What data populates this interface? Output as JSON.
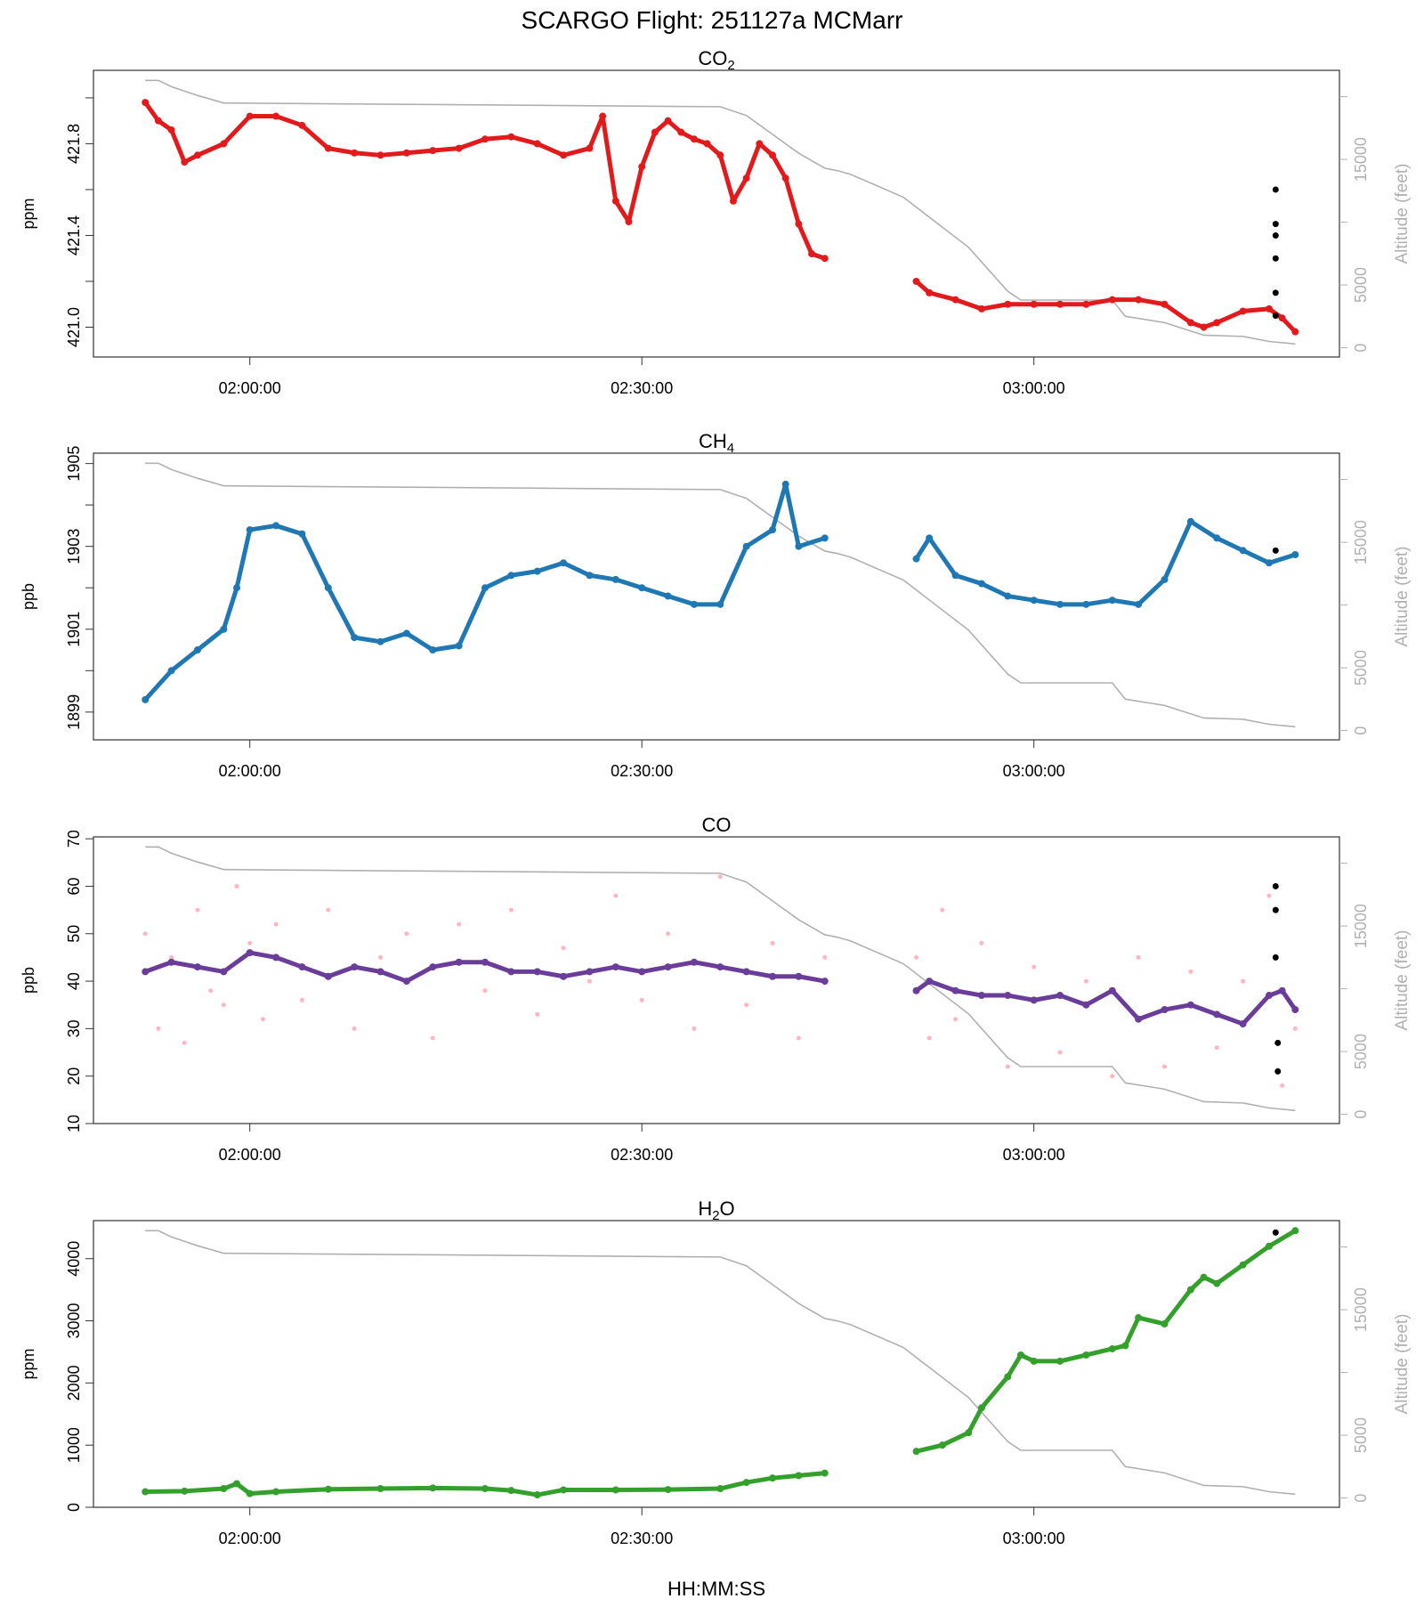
{
  "title": "SCARGO Flight: 251127a  MCMarr",
  "xlabel": "HH:MM:SS",
  "chart_data": [
    {
      "type": "scatter",
      "title": "CO",
      "title_sub": "2",
      "ylabel": "ppm",
      "y2label": "Altitude (feet)",
      "xlim": [
        "01:48:02",
        "03:23:23"
      ],
      "xticks": [
        "02:00:00",
        "02:30:00",
        "03:00:00"
      ],
      "ylim": [
        420.87,
        422.12
      ],
      "yticks": [
        421.0,
        421.2,
        421.4,
        421.6,
        421.8,
        422.0
      ],
      "ytick_labels": [
        "421.0",
        "421.4",
        "421.8"
      ],
      "color": "#e31a1c",
      "grid": false,
      "series": [
        {
          "t": [
            "01:52",
            "01:53",
            "01:54",
            "01:55",
            "01:56",
            "01:58",
            "02:00",
            "02:02",
            "02:04",
            "02:06",
            "02:08",
            "02:10",
            "02:12",
            "02:14",
            "02:16",
            "02:18",
            "02:20",
            "02:22",
            "02:24",
            "02:26",
            "02:27",
            "02:28",
            "02:29",
            "02:30",
            "02:31",
            "02:32",
            "02:33",
            "02:34",
            "02:35",
            "02:36",
            "02:37",
            "02:38",
            "02:39",
            "02:40",
            "02:41",
            "02:42",
            "02:43",
            "02:44"
          ],
          "y": [
            421.98,
            421.9,
            421.86,
            421.72,
            421.75,
            421.8,
            421.92,
            421.92,
            421.88,
            421.78,
            421.76,
            421.75,
            421.76,
            421.77,
            421.78,
            421.82,
            421.83,
            421.8,
            421.75,
            421.78,
            421.92,
            421.55,
            421.46,
            421.7,
            421.85,
            421.9,
            421.85,
            421.82,
            421.8,
            421.75,
            421.55,
            421.65,
            421.8,
            421.75,
            421.65,
            421.45,
            421.32,
            421.3
          ]
        },
        {
          "t": [
            "02:51",
            "02:52",
            "02:54",
            "02:56",
            "02:58",
            "03:00",
            "03:02",
            "03:04",
            "03:06",
            "03:08",
            "03:10",
            "03:12",
            "03:13",
            "03:14",
            "03:16",
            "03:18",
            "03:19",
            "03:20"
          ],
          "y": [
            421.2,
            421.15,
            421.12,
            421.08,
            421.1,
            421.1,
            421.1,
            421.1,
            421.12,
            421.12,
            421.1,
            421.02,
            421.0,
            421.02,
            421.07,
            421.08,
            421.04,
            420.98
          ]
        }
      ],
      "flagged": {
        "t": [
          "03:18:30",
          "03:18:30",
          "03:18:30",
          "03:18:30",
          "03:18:30",
          "03:18:30"
        ],
        "y": [
          421.05,
          421.15,
          421.3,
          421.4,
          421.45,
          421.6
        ]
      }
    },
    {
      "type": "scatter",
      "title": "CH",
      "title_sub": "4",
      "ylabel": "ppb",
      "y2label": "Altitude (feet)",
      "xlim": [
        "01:48:02",
        "03:23:23"
      ],
      "xticks": [
        "02:00:00",
        "02:30:00",
        "03:00:00"
      ],
      "ylim": [
        1898.33,
        1905.25
      ],
      "yticks": [
        1899,
        1900,
        1901,
        1902,
        1903,
        1904,
        1905
      ],
      "ytick_labels": [
        "1899",
        "1901",
        "1903",
        "1905"
      ],
      "color": "#1f78b4",
      "grid": false,
      "series": [
        {
          "t": [
            "01:52",
            "01:54",
            "01:56",
            "01:58",
            "01:59",
            "02:00",
            "02:02",
            "02:04",
            "02:06",
            "02:08",
            "02:10",
            "02:12",
            "02:14",
            "02:16",
            "02:18",
            "02:20",
            "02:22",
            "02:24",
            "02:26",
            "02:28",
            "02:30",
            "02:32",
            "02:34",
            "02:36",
            "02:38",
            "02:40",
            "02:41",
            "02:42",
            "02:44"
          ],
          "y": [
            1899.3,
            1900.0,
            1900.5,
            1901.0,
            1902.0,
            1903.4,
            1903.5,
            1903.3,
            1902.0,
            1900.8,
            1900.7,
            1900.9,
            1900.5,
            1900.6,
            1902.0,
            1902.3,
            1902.4,
            1902.6,
            1902.3,
            1902.2,
            1902.0,
            1901.8,
            1901.6,
            1901.6,
            1903.0,
            1903.4,
            1904.5,
            1903.0,
            1903.2
          ]
        },
        {
          "t": [
            "02:51",
            "02:52",
            "02:54",
            "02:56",
            "02:58",
            "03:00",
            "03:02",
            "03:04",
            "03:06",
            "03:08",
            "03:10",
            "03:12",
            "03:14",
            "03:16",
            "03:18",
            "03:20"
          ],
          "y": [
            1902.7,
            1903.2,
            1902.3,
            1902.1,
            1901.8,
            1901.7,
            1901.6,
            1901.6,
            1901.7,
            1901.6,
            1902.2,
            1903.6,
            1903.2,
            1902.9,
            1902.6,
            1902.8
          ]
        }
      ],
      "flagged": {
        "t": [
          "03:18:30"
        ],
        "y": [
          1902.9
        ]
      }
    },
    {
      "type": "scatter",
      "title": "CO",
      "title_sub": "",
      "ylabel": "ppb",
      "y2label": "Altitude (feet)",
      "xlim": [
        "01:48:02",
        "03:23:23"
      ],
      "xticks": [
        "02:00:00",
        "02:30:00",
        "03:00:00"
      ],
      "ylim": [
        10,
        70.4
      ],
      "yticks": [
        10,
        20,
        30,
        40,
        50,
        60,
        70
      ],
      "ytick_labels": [
        "10",
        "20",
        "30",
        "40",
        "50",
        "60",
        "70"
      ],
      "color": "#6a3d9a",
      "raw_color": "#ffb6c1",
      "grid": false,
      "raw": [
        {
          "t": [
            "01:52",
            "01:53",
            "01:54",
            "01:55",
            "01:56",
            "01:57",
            "01:58",
            "01:59",
            "02:00",
            "02:01",
            "02:02",
            "02:04",
            "02:06",
            "02:08",
            "02:10",
            "02:12",
            "02:14",
            "02:16",
            "02:18",
            "02:20",
            "02:22",
            "02:24",
            "02:26",
            "02:28",
            "02:30",
            "02:32",
            "02:34",
            "02:36",
            "02:38",
            "02:40",
            "02:42",
            "02:44"
          ],
          "y": [
            50,
            30,
            45,
            27,
            55,
            38,
            35,
            60,
            48,
            32,
            52,
            36,
            55,
            30,
            45,
            50,
            28,
            52,
            38,
            55,
            33,
            47,
            40,
            58,
            36,
            50,
            30,
            62,
            35,
            48,
            28,
            45
          ]
        },
        {
          "t": [
            "02:51",
            "02:52",
            "02:53",
            "02:54",
            "02:56",
            "02:58",
            "03:00",
            "03:02",
            "03:04",
            "03:06",
            "03:08",
            "03:10",
            "03:12",
            "03:14",
            "03:16",
            "03:18",
            "03:19",
            "03:20"
          ],
          "y": [
            45,
            28,
            55,
            32,
            48,
            22,
            43,
            25,
            40,
            20,
            45,
            22,
            42,
            26,
            40,
            58,
            18,
            30
          ]
        }
      ],
      "series": [
        {
          "t": [
            "01:52",
            "01:54",
            "01:56",
            "01:58",
            "02:00",
            "02:02",
            "02:04",
            "02:06",
            "02:08",
            "02:10",
            "02:12",
            "02:14",
            "02:16",
            "02:18",
            "02:20",
            "02:22",
            "02:24",
            "02:26",
            "02:28",
            "02:30",
            "02:32",
            "02:34",
            "02:36",
            "02:38",
            "02:40",
            "02:42",
            "02:44"
          ],
          "y": [
            42,
            44,
            43,
            42,
            46,
            45,
            43,
            41,
            43,
            42,
            40,
            43,
            44,
            44,
            42,
            42,
            41,
            42,
            43,
            42,
            43,
            44,
            43,
            42,
            41,
            41,
            40
          ]
        },
        {
          "t": [
            "02:51",
            "02:52",
            "02:54",
            "02:56",
            "02:58",
            "03:00",
            "03:02",
            "03:04",
            "03:06",
            "03:08",
            "03:10",
            "03:12",
            "03:14",
            "03:16",
            "03:18",
            "03:19",
            "03:20"
          ],
          "y": [
            38,
            40,
            38,
            37,
            37,
            36,
            37,
            35,
            38,
            32,
            34,
            35,
            33,
            31,
            37,
            38,
            34
          ]
        }
      ],
      "flagged": {
        "t": [
          "03:18:30",
          "03:18:30",
          "03:18:30",
          "03:18:40",
          "03:18:40"
        ],
        "y": [
          60,
          55,
          45,
          27,
          21
        ]
      }
    },
    {
      "type": "scatter",
      "title": "H",
      "title_sub": "2",
      "title_tail": "O",
      "ylabel": "ppm",
      "y2label": "Altitude (feet)",
      "xlim": [
        "01:48:02",
        "03:23:23"
      ],
      "xticks": [
        "02:00:00",
        "02:30:00",
        "03:00:00"
      ],
      "ylim": [
        0,
        4612
      ],
      "yticks": [
        0,
        1000,
        2000,
        3000,
        4000
      ],
      "ytick_labels": [
        "0",
        "1000",
        "2000",
        "3000",
        "4000"
      ],
      "color": "#33a02c",
      "grid": false,
      "series": [
        {
          "t": [
            "01:52",
            "01:55",
            "01:58",
            "01:59",
            "02:00",
            "02:02",
            "02:06",
            "02:10",
            "02:14",
            "02:18",
            "02:20",
            "02:22",
            "02:24",
            "02:28",
            "02:32",
            "02:36",
            "02:38",
            "02:40",
            "02:42",
            "02:44"
          ],
          "y": [
            250,
            260,
            300,
            380,
            220,
            250,
            290,
            300,
            310,
            300,
            270,
            200,
            280,
            280,
            285,
            300,
            400,
            470,
            510,
            550
          ]
        },
        {
          "t": [
            "02:51",
            "02:53",
            "02:55",
            "02:56",
            "02:58",
            "02:59",
            "03:00",
            "03:02",
            "03:04",
            "03:06",
            "03:07",
            "03:08",
            "03:10",
            "03:12",
            "03:13",
            "03:14",
            "03:16",
            "03:18",
            "03:20"
          ],
          "y": [
            900,
            1000,
            1200,
            1600,
            2100,
            2450,
            2350,
            2350,
            2450,
            2550,
            2600,
            3050,
            2950,
            3500,
            3700,
            3600,
            3900,
            4200,
            4450
          ]
        }
      ],
      "flagged": {
        "t": [
          "03:18:30"
        ],
        "y": [
          4420
        ]
      }
    }
  ],
  "altitude": {
    "label": "Altitude (feet)",
    "color": "#b0b0b0",
    "ylim": [
      -740,
      22100
    ],
    "yticks": [
      0,
      5000,
      10000,
      15000,
      20000
    ],
    "ytick_labels": [
      "0",
      "5000",
      "15000"
    ],
    "t": [
      "01:52",
      "01:53",
      "01:54",
      "01:56",
      "01:58",
      "02:36",
      "02:38",
      "02:40",
      "02:42",
      "02:44",
      "02:45",
      "02:46",
      "02:50",
      "02:55",
      "02:58",
      "02:59",
      "03:06",
      "03:07",
      "03:10",
      "03:13",
      "03:16",
      "03:18",
      "03:20"
    ],
    "y": [
      21300,
      21300,
      20800,
      20100,
      19500,
      19200,
      18500,
      17000,
      15500,
      14300,
      14100,
      13800,
      12000,
      8000,
      4500,
      3800,
      3800,
      2500,
      2000,
      1000,
      900,
      500,
      300
    ]
  }
}
